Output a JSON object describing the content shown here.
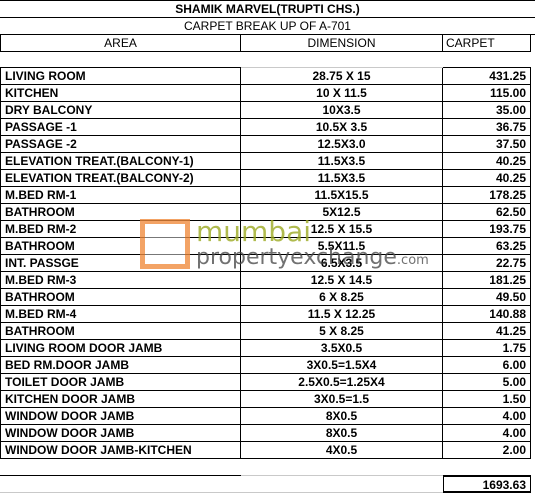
{
  "title": "SHAMIK MARVEL(TRUPTI CHS.)",
  "subtitle": "CARPET BREAK UP OF    A-701",
  "headers": {
    "area": "AREA",
    "dimension": "DIMENSION",
    "carpet": "CARPET"
  },
  "rows": [
    {
      "area": "LIVING ROOM",
      "dimension": "28.75 X 15",
      "carpet": "431.25"
    },
    {
      "area": "KITCHEN",
      "dimension": "10 X 11.5",
      "carpet": "115.00"
    },
    {
      "area": "DRY BALCONY",
      "dimension": "10X3.5",
      "carpet": "35.00"
    },
    {
      "area": "PASSAGE -1",
      "dimension": "10.5X 3.5",
      "carpet": "36.75"
    },
    {
      "area": "PASSAGE -2",
      "dimension": "12.5X3.0",
      "carpet": "37.50"
    },
    {
      "area": "ELEVATION TREAT.(BALCONY-1)",
      "dimension": "11.5X3.5",
      "carpet": "40.25"
    },
    {
      "area": "ELEVATION TREAT.(BALCONY-2)",
      "dimension": "11.5X3.5",
      "carpet": "40.25"
    },
    {
      "area": "M.BED RM-1",
      "dimension": "11.5X15.5",
      "carpet": "178.25"
    },
    {
      "area": "BATHROOM",
      "dimension": "5X12.5",
      "carpet": "62.50"
    },
    {
      "area": "M.BED RM-2",
      "dimension": "12.5 X 15.5",
      "carpet": "193.75"
    },
    {
      "area": "BATHROOM",
      "dimension": "5.5X11.5",
      "carpet": "63.25"
    },
    {
      "area": "INT. PASSGE",
      "dimension": "6.5X3.5",
      "carpet": "22.75"
    },
    {
      "area": "M.BED RM-3",
      "dimension": "12.5 X 14.5",
      "carpet": "181.25"
    },
    {
      "area": "BATHROOM",
      "dimension": "6 X 8.25",
      "carpet": "49.50"
    },
    {
      "area": "M.BED RM-4",
      "dimension": "11.5 X 12.25",
      "carpet": "140.88"
    },
    {
      "area": "BATHROOM",
      "dimension": "5 X 8.25",
      "carpet": "41.25"
    },
    {
      "area": "LIVING ROOM DOOR JAMB",
      "dimension": "3.5X0.5",
      "carpet": "1.75"
    },
    {
      "area": "BED RM.DOOR JAMB",
      "dimension": "3X0.5=1.5X4",
      "carpet": "6.00"
    },
    {
      "area": "TOILET DOOR JAMB",
      "dimension": "2.5X0.5=1.25X4",
      "carpet": "5.00"
    },
    {
      "area": "KITCHEN DOOR JAMB",
      "dimension": "3X0.5=1.5",
      "carpet": "1.50"
    },
    {
      "area": "WINDOW DOOR JAMB",
      "dimension": "8X0.5",
      "carpet": "4.00"
    },
    {
      "area": "WINDOW DOOR JAMB",
      "dimension": "8X0.5",
      "carpet": "4.00"
    },
    {
      "area": "WINDOW DOOR JAMB-KITCHEN",
      "dimension": "4X0.5",
      "carpet": "2.00"
    }
  ],
  "total": "1693.63",
  "watermark": {
    "line1": "mumbai",
    "line2": "propertyexchange",
    "suffix": ".com",
    "brand_color": "#9aa81e",
    "accent_color": "#f08a3a"
  }
}
